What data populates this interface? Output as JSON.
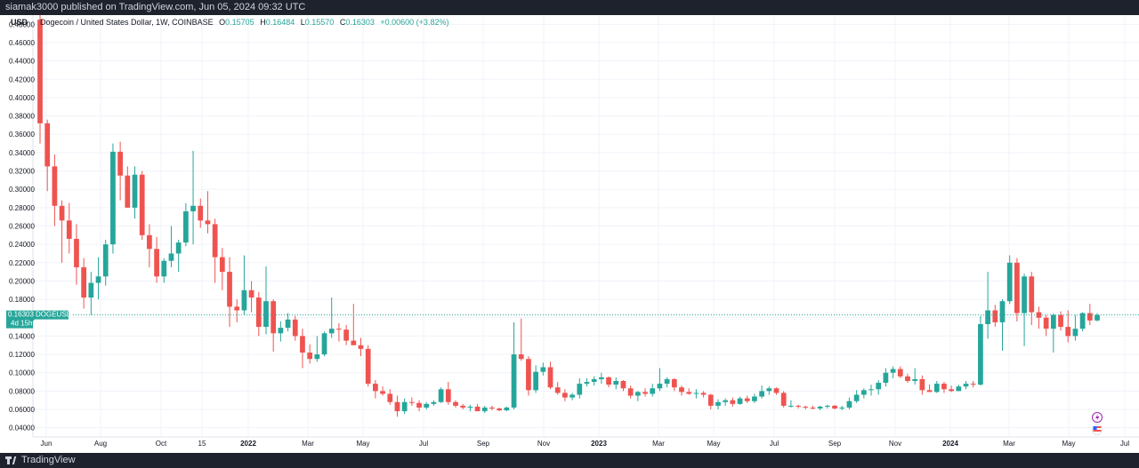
{
  "header": {
    "published_text": "siamak3000 published on TradingView.com, Jun 05, 2024 09:32 UTC"
  },
  "footer": {
    "brand": "TradingView"
  },
  "legend": {
    "currency": "USD",
    "symbol_text": "Dogecoin / United States Dollar, 1W, COINBASE",
    "o_label": "O",
    "o_value": "0.15705",
    "h_label": "H",
    "h_value": "0.16484",
    "l_label": "L",
    "l_value": "0.15570",
    "c_label": "C",
    "c_value": "0.16303",
    "change": "+0.00600 (+3.82%)"
  },
  "price_tag": {
    "price": "0.16303",
    "ticker": "DOGEUSD",
    "countdown": "4d 15h"
  },
  "colors": {
    "up": "#26a69a",
    "down": "#ef5350",
    "grid": "#f0f3fa",
    "axis_text": "#131722",
    "price_line": "#26a69a"
  },
  "icons": [
    "lightning-icon",
    "us-flag-icon"
  ],
  "chart_data": {
    "type": "candlestick",
    "title": "Dogecoin / United States Dollar, 1W, COINBASE",
    "ylim": [
      0.03,
      0.49
    ],
    "y_ticks": [
      "0.04000",
      "0.06000",
      "0.08000",
      "0.10000",
      "0.12000",
      "0.14000",
      "0.16000",
      "0.18000",
      "0.20000",
      "0.22000",
      "0.24000",
      "0.26000",
      "0.28000",
      "0.30000",
      "0.32000",
      "0.34000",
      "0.36000",
      "0.38000",
      "0.40000",
      "0.42000",
      "0.44000",
      "0.46000",
      "0.48000"
    ],
    "x_ticks": [
      "Jun",
      "Aug",
      "Oct",
      "15",
      "2022",
      "Mar",
      "May",
      "Jul",
      "Sep",
      "Nov",
      "2023",
      "Mar",
      "May",
      "Jul",
      "Sep",
      "Nov",
      "2024",
      "Mar",
      "May",
      "Jul"
    ],
    "current_price": 0.16303,
    "grid": true,
    "candles": [
      [
        0.485,
        0.49,
        0.35,
        0.372
      ],
      [
        0.372,
        0.376,
        0.298,
        0.325
      ],
      [
        0.325,
        0.338,
        0.26,
        0.282
      ],
      [
        0.282,
        0.288,
        0.22,
        0.266
      ],
      [
        0.266,
        0.285,
        0.23,
        0.246
      ],
      [
        0.246,
        0.262,
        0.196,
        0.215
      ],
      [
        0.215,
        0.225,
        0.17,
        0.182
      ],
      [
        0.182,
        0.21,
        0.163,
        0.198
      ],
      [
        0.198,
        0.226,
        0.18,
        0.205
      ],
      [
        0.205,
        0.245,
        0.195,
        0.24
      ],
      [
        0.24,
        0.35,
        0.23,
        0.341
      ],
      [
        0.341,
        0.352,
        0.288,
        0.315
      ],
      [
        0.315,
        0.325,
        0.28,
        0.28
      ],
      [
        0.28,
        0.325,
        0.268,
        0.316
      ],
      [
        0.316,
        0.32,
        0.245,
        0.25
      ],
      [
        0.25,
        0.262,
        0.215,
        0.235
      ],
      [
        0.235,
        0.248,
        0.198,
        0.205
      ],
      [
        0.205,
        0.225,
        0.198,
        0.222
      ],
      [
        0.222,
        0.26,
        0.215,
        0.23
      ],
      [
        0.23,
        0.245,
        0.21,
        0.242
      ],
      [
        0.242,
        0.285,
        0.238,
        0.276
      ],
      [
        0.276,
        0.342,
        0.24,
        0.282
      ],
      [
        0.282,
        0.29,
        0.258,
        0.266
      ],
      [
        0.266,
        0.298,
        0.252,
        0.262
      ],
      [
        0.262,
        0.268,
        0.198,
        0.226
      ],
      [
        0.226,
        0.236,
        0.19,
        0.21
      ],
      [
        0.21,
        0.226,
        0.15,
        0.172
      ],
      [
        0.172,
        0.18,
        0.155,
        0.168
      ],
      [
        0.168,
        0.228,
        0.163,
        0.19
      ],
      [
        0.19,
        0.2,
        0.166,
        0.182
      ],
      [
        0.182,
        0.188,
        0.14,
        0.15
      ],
      [
        0.15,
        0.216,
        0.142,
        0.178
      ],
      [
        0.178,
        0.18,
        0.123,
        0.143
      ],
      [
        0.143,
        0.156,
        0.134,
        0.149
      ],
      [
        0.149,
        0.165,
        0.145,
        0.158
      ],
      [
        0.158,
        0.162,
        0.135,
        0.14
      ],
      [
        0.14,
        0.148,
        0.105,
        0.122
      ],
      [
        0.122,
        0.131,
        0.11,
        0.115
      ],
      [
        0.115,
        0.14,
        0.112,
        0.12
      ],
      [
        0.12,
        0.145,
        0.118,
        0.143
      ],
      [
        0.143,
        0.182,
        0.138,
        0.148
      ],
      [
        0.148,
        0.154,
        0.134,
        0.147
      ],
      [
        0.147,
        0.152,
        0.13,
        0.135
      ],
      [
        0.135,
        0.175,
        0.13,
        0.13
      ],
      [
        0.13,
        0.138,
        0.118,
        0.126
      ],
      [
        0.126,
        0.13,
        0.085,
        0.088
      ],
      [
        0.088,
        0.092,
        0.072,
        0.08
      ],
      [
        0.08,
        0.085,
        0.075,
        0.077
      ],
      [
        0.077,
        0.082,
        0.065,
        0.068
      ],
      [
        0.068,
        0.075,
        0.052,
        0.058
      ],
      [
        0.058,
        0.072,
        0.055,
        0.068
      ],
      [
        0.068,
        0.073,
        0.064,
        0.067
      ],
      [
        0.067,
        0.07,
        0.058,
        0.062
      ],
      [
        0.062,
        0.068,
        0.06,
        0.066
      ],
      [
        0.066,
        0.07,
        0.064,
        0.068
      ],
      [
        0.068,
        0.084,
        0.067,
        0.082
      ],
      [
        0.082,
        0.09,
        0.065,
        0.068
      ],
      [
        0.068,
        0.07,
        0.062,
        0.064
      ],
      [
        0.064,
        0.066,
        0.06,
        0.062
      ],
      [
        0.062,
        0.065,
        0.058,
        0.063
      ],
      [
        0.063,
        0.066,
        0.061,
        0.058
      ],
      [
        0.058,
        0.064,
        0.056,
        0.062
      ],
      [
        0.062,
        0.064,
        0.059,
        0.061
      ],
      [
        0.061,
        0.062,
        0.058,
        0.059
      ],
      [
        0.059,
        0.063,
        0.058,
        0.062
      ],
      [
        0.062,
        0.155,
        0.06,
        0.12
      ],
      [
        0.12,
        0.159,
        0.113,
        0.115
      ],
      [
        0.115,
        0.118,
        0.075,
        0.081
      ],
      [
        0.081,
        0.108,
        0.078,
        0.101
      ],
      [
        0.101,
        0.111,
        0.097,
        0.106
      ],
      [
        0.106,
        0.112,
        0.082,
        0.084
      ],
      [
        0.084,
        0.09,
        0.076,
        0.078
      ],
      [
        0.078,
        0.082,
        0.069,
        0.073
      ],
      [
        0.073,
        0.078,
        0.07,
        0.076
      ],
      [
        0.076,
        0.094,
        0.072,
        0.088
      ],
      [
        0.088,
        0.094,
        0.085,
        0.09
      ],
      [
        0.09,
        0.096,
        0.086,
        0.093
      ],
      [
        0.093,
        0.1,
        0.088,
        0.095
      ],
      [
        0.095,
        0.096,
        0.084,
        0.087
      ],
      [
        0.087,
        0.095,
        0.082,
        0.091
      ],
      [
        0.091,
        0.092,
        0.08,
        0.083
      ],
      [
        0.083,
        0.086,
        0.072,
        0.075
      ],
      [
        0.075,
        0.08,
        0.069,
        0.079
      ],
      [
        0.079,
        0.083,
        0.074,
        0.077
      ],
      [
        0.077,
        0.088,
        0.074,
        0.083
      ],
      [
        0.083,
        0.105,
        0.08,
        0.088
      ],
      [
        0.088,
        0.095,
        0.084,
        0.093
      ],
      [
        0.093,
        0.094,
        0.08,
        0.084
      ],
      [
        0.084,
        0.086,
        0.075,
        0.079
      ],
      [
        0.079,
        0.083,
        0.076,
        0.077
      ],
      [
        0.077,
        0.082,
        0.072,
        0.078
      ],
      [
        0.078,
        0.08,
        0.073,
        0.076
      ],
      [
        0.076,
        0.077,
        0.06,
        0.064
      ],
      [
        0.064,
        0.071,
        0.06,
        0.068
      ],
      [
        0.068,
        0.072,
        0.064,
        0.07
      ],
      [
        0.07,
        0.073,
        0.063,
        0.066
      ],
      [
        0.066,
        0.074,
        0.065,
        0.072
      ],
      [
        0.072,
        0.075,
        0.067,
        0.069
      ],
      [
        0.069,
        0.077,
        0.067,
        0.074
      ],
      [
        0.074,
        0.086,
        0.072,
        0.08
      ],
      [
        0.08,
        0.085,
        0.076,
        0.083
      ],
      [
        0.083,
        0.084,
        0.076,
        0.078
      ],
      [
        0.078,
        0.08,
        0.062,
        0.064
      ],
      [
        0.064,
        0.07,
        0.062,
        0.064
      ],
      [
        0.064,
        0.065,
        0.061,
        0.063
      ],
      [
        0.063,
        0.064,
        0.06,
        0.062
      ],
      [
        0.062,
        0.064,
        0.06,
        0.061
      ],
      [
        0.061,
        0.064,
        0.059,
        0.063
      ],
      [
        0.063,
        0.065,
        0.061,
        0.064
      ],
      [
        0.064,
        0.065,
        0.06,
        0.061
      ],
      [
        0.061,
        0.064,
        0.059,
        0.062
      ],
      [
        0.062,
        0.073,
        0.06,
        0.069
      ],
      [
        0.069,
        0.081,
        0.067,
        0.076
      ],
      [
        0.076,
        0.083,
        0.072,
        0.081
      ],
      [
        0.081,
        0.087,
        0.075,
        0.082
      ],
      [
        0.082,
        0.092,
        0.076,
        0.089
      ],
      [
        0.089,
        0.105,
        0.085,
        0.1
      ],
      [
        0.1,
        0.107,
        0.094,
        0.104
      ],
      [
        0.104,
        0.107,
        0.094,
        0.096
      ],
      [
        0.096,
        0.099,
        0.089,
        0.091
      ],
      [
        0.091,
        0.105,
        0.087,
        0.093
      ],
      [
        0.093,
        0.097,
        0.076,
        0.081
      ],
      [
        0.081,
        0.087,
        0.079,
        0.079
      ],
      [
        0.079,
        0.091,
        0.078,
        0.088
      ],
      [
        0.088,
        0.09,
        0.078,
        0.082
      ],
      [
        0.082,
        0.086,
        0.079,
        0.08
      ],
      [
        0.08,
        0.087,
        0.08,
        0.085
      ],
      [
        0.085,
        0.091,
        0.082,
        0.088
      ],
      [
        0.088,
        0.091,
        0.084,
        0.087
      ],
      [
        0.087,
        0.162,
        0.086,
        0.153
      ],
      [
        0.153,
        0.21,
        0.137,
        0.168
      ],
      [
        0.168,
        0.174,
        0.15,
        0.155
      ],
      [
        0.155,
        0.18,
        0.124,
        0.178
      ],
      [
        0.178,
        0.228,
        0.175,
        0.22
      ],
      [
        0.22,
        0.225,
        0.156,
        0.165
      ],
      [
        0.165,
        0.208,
        0.129,
        0.205
      ],
      [
        0.205,
        0.21,
        0.152,
        0.166
      ],
      [
        0.166,
        0.172,
        0.148,
        0.16
      ],
      [
        0.16,
        0.163,
        0.14,
        0.148
      ],
      [
        0.148,
        0.165,
        0.122,
        0.163
      ],
      [
        0.163,
        0.167,
        0.146,
        0.15
      ],
      [
        0.15,
        0.168,
        0.133,
        0.14
      ],
      [
        0.14,
        0.163,
        0.135,
        0.148
      ],
      [
        0.148,
        0.166,
        0.145,
        0.165
      ],
      [
        0.165,
        0.175,
        0.152,
        0.157
      ],
      [
        0.157,
        0.165,
        0.156,
        0.163
      ]
    ]
  }
}
